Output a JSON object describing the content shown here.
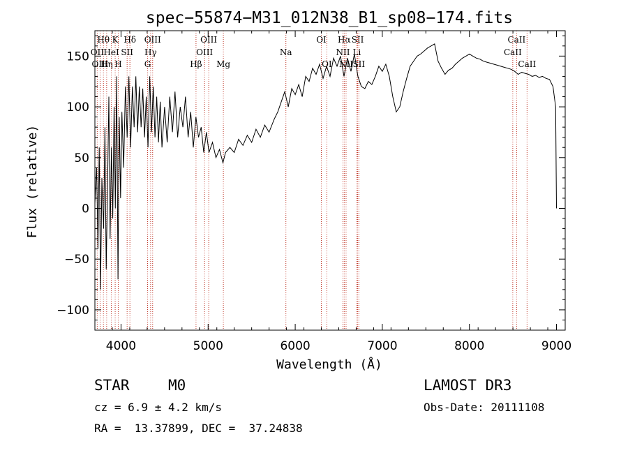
{
  "chart_data": {
    "type": "line",
    "title": "spec−55874−M31_012N38_B1_sp08−174.fits",
    "xlabel": "Wavelength (Å)",
    "ylabel": "Flux (relative)",
    "xlim": [
      3700,
      9100
    ],
    "ylim": [
      -120,
      175
    ],
    "x_ticks": [
      4000,
      5000,
      6000,
      7000,
      8000,
      9000
    ],
    "x_tick_labels": [
      "4000",
      "5000",
      "6000",
      "7000",
      "8000",
      "9000"
    ],
    "y_ticks": [
      -100,
      -50,
      0,
      50,
      100,
      150
    ],
    "y_tick_labels": [
      "−100",
      "−50",
      "0",
      "50",
      "100",
      "150"
    ],
    "series": [
      {
        "name": "flux",
        "color": "#000000",
        "points": [
          [
            3700,
            5
          ],
          [
            3720,
            40
          ],
          [
            3735,
            -40
          ],
          [
            3750,
            60
          ],
          [
            3765,
            -80
          ],
          [
            3780,
            30
          ],
          [
            3800,
            -20
          ],
          [
            3815,
            80
          ],
          [
            3830,
            -60
          ],
          [
            3845,
            20
          ],
          [
            3860,
            110
          ],
          [
            3875,
            -30
          ],
          [
            3890,
            60
          ],
          [
            3905,
            -10
          ],
          [
            3920,
            100
          ],
          [
            3935,
            0
          ],
          [
            3950,
            130
          ],
          [
            3965,
            -70
          ],
          [
            3980,
            90
          ],
          [
            3995,
            10
          ],
          [
            4010,
            95
          ],
          [
            4030,
            40
          ],
          [
            4050,
            120
          ],
          [
            4070,
            70
          ],
          [
            4090,
            130
          ],
          [
            4110,
            60
          ],
          [
            4130,
            120
          ],
          [
            4150,
            80
          ],
          [
            4170,
            130
          ],
          [
            4190,
            75
          ],
          [
            4210,
            120
          ],
          [
            4230,
            80
          ],
          [
            4250,
            118
          ],
          [
            4270,
            70
          ],
          [
            4290,
            110
          ],
          [
            4310,
            60
          ],
          [
            4330,
            130
          ],
          [
            4350,
            75
          ],
          [
            4370,
            120
          ],
          [
            4390,
            70
          ],
          [
            4410,
            110
          ],
          [
            4430,
            65
          ],
          [
            4450,
            105
          ],
          [
            4470,
            60
          ],
          [
            4500,
            100
          ],
          [
            4530,
            65
          ],
          [
            4560,
            110
          ],
          [
            4590,
            75
          ],
          [
            4620,
            115
          ],
          [
            4650,
            70
          ],
          [
            4680,
            100
          ],
          [
            4710,
            80
          ],
          [
            4740,
            110
          ],
          [
            4770,
            70
          ],
          [
            4800,
            95
          ],
          [
            4830,
            60
          ],
          [
            4860,
            90
          ],
          [
            4890,
            70
          ],
          [
            4920,
            80
          ],
          [
            4950,
            55
          ],
          [
            4980,
            75
          ],
          [
            5010,
            55
          ],
          [
            5050,
            65
          ],
          [
            5090,
            50
          ],
          [
            5130,
            58
          ],
          [
            5170,
            45
          ],
          [
            5200,
            55
          ],
          [
            5250,
            60
          ],
          [
            5300,
            55
          ],
          [
            5350,
            68
          ],
          [
            5400,
            62
          ],
          [
            5450,
            72
          ],
          [
            5500,
            65
          ],
          [
            5550,
            78
          ],
          [
            5600,
            70
          ],
          [
            5650,
            82
          ],
          [
            5700,
            75
          ],
          [
            5760,
            88
          ],
          [
            5800,
            95
          ],
          [
            5840,
            105
          ],
          [
            5880,
            115
          ],
          [
            5920,
            100
          ],
          [
            5960,
            118
          ],
          [
            6000,
            112
          ],
          [
            6040,
            122
          ],
          [
            6080,
            110
          ],
          [
            6120,
            130
          ],
          [
            6160,
            125
          ],
          [
            6200,
            138
          ],
          [
            6240,
            132
          ],
          [
            6280,
            142
          ],
          [
            6320,
            128
          ],
          [
            6360,
            140
          ],
          [
            6400,
            130
          ],
          [
            6440,
            148
          ],
          [
            6480,
            140
          ],
          [
            6520,
            150
          ],
          [
            6560,
            130
          ],
          [
            6600,
            148
          ],
          [
            6640,
            135
          ],
          [
            6680,
            152
          ],
          [
            6720,
            130
          ],
          [
            6760,
            120
          ],
          [
            6800,
            118
          ],
          [
            6840,
            125
          ],
          [
            6880,
            122
          ],
          [
            6920,
            130
          ],
          [
            6960,
            140
          ],
          [
            7000,
            135
          ],
          [
            7040,
            142
          ],
          [
            7080,
            130
          ],
          [
            7120,
            110
          ],
          [
            7160,
            95
          ],
          [
            7200,
            100
          ],
          [
            7240,
            115
          ],
          [
            7280,
            128
          ],
          [
            7320,
            140
          ],
          [
            7360,
            145
          ],
          [
            7400,
            150
          ],
          [
            7440,
            152
          ],
          [
            7480,
            155
          ],
          [
            7520,
            158
          ],
          [
            7560,
            160
          ],
          [
            7600,
            162
          ],
          [
            7640,
            145
          ],
          [
            7680,
            138
          ],
          [
            7720,
            132
          ],
          [
            7760,
            136
          ],
          [
            7800,
            138
          ],
          [
            7840,
            142
          ],
          [
            7880,
            145
          ],
          [
            7920,
            148
          ],
          [
            7960,
            150
          ],
          [
            8000,
            152
          ],
          [
            8040,
            150
          ],
          [
            8080,
            148
          ],
          [
            8120,
            147
          ],
          [
            8160,
            145
          ],
          [
            8200,
            144
          ],
          [
            8240,
            143
          ],
          [
            8280,
            142
          ],
          [
            8320,
            141
          ],
          [
            8360,
            140
          ],
          [
            8400,
            139
          ],
          [
            8440,
            138
          ],
          [
            8480,
            137
          ],
          [
            8520,
            135
          ],
          [
            8560,
            132
          ],
          [
            8600,
            134
          ],
          [
            8640,
            133
          ],
          [
            8680,
            132
          ],
          [
            8720,
            130
          ],
          [
            8760,
            131
          ],
          [
            8800,
            129
          ],
          [
            8840,
            130
          ],
          [
            8880,
            128
          ],
          [
            8920,
            127
          ],
          [
            8960,
            120
          ],
          [
            8990,
            100
          ],
          [
            9000,
            0
          ]
        ]
      }
    ],
    "line_markers": [
      {
        "label": "Hθ",
        "wave": 3798,
        "row": 0
      },
      {
        "label": "OII",
        "wave": 3727,
        "row": 1
      },
      {
        "label": "OIII",
        "wave": 3760,
        "row": 2
      },
      {
        "label": "Hη",
        "wave": 3835,
        "row": 2
      },
      {
        "label": "K",
        "wave": 3933,
        "row": 0
      },
      {
        "label": "HeI",
        "wave": 3889,
        "row": 1
      },
      {
        "label": "H",
        "wave": 3968,
        "row": 2
      },
      {
        "label": "Hδ",
        "wave": 4102,
        "row": 0
      },
      {
        "label": "SII",
        "wave": 4070,
        "row": 1
      },
      {
        "label": "OIII",
        "wave": 4363,
        "row": 0
      },
      {
        "label": "Hγ",
        "wave": 4340,
        "row": 1
      },
      {
        "label": "G",
        "wave": 4305,
        "row": 2
      },
      {
        "label": "Hβ",
        "wave": 4861,
        "row": 2
      },
      {
        "label": "OIII",
        "wave": 5007,
        "row": 0
      },
      {
        "label": "OIII",
        "wave": 4959,
        "row": 1
      },
      {
        "label": "Mg",
        "wave": 5175,
        "row": 2
      },
      {
        "label": "Na",
        "wave": 5893,
        "row": 1
      },
      {
        "label": "OI",
        "wave": 6300,
        "row": 0
      },
      {
        "label": "OI",
        "wave": 6363,
        "row": 2
      },
      {
        "label": "Hα",
        "wave": 6563,
        "row": 0
      },
      {
        "label": "NII",
        "wave": 6548,
        "row": 1
      },
      {
        "label": "NII",
        "wave": 6584,
        "row": 2
      },
      {
        "label": "SII",
        "wave": 6717,
        "row": 0
      },
      {
        "label": "Li",
        "wave": 6708,
        "row": 1
      },
      {
        "label": "SII",
        "wave": 6731,
        "row": 2
      },
      {
        "label": "CaII",
        "wave": 8542,
        "row": 0
      },
      {
        "label": "CaII",
        "wave": 8498,
        "row": 1
      },
      {
        "label": "CaII",
        "wave": 8662,
        "row": 2
      }
    ],
    "marker_color": "#c0392b",
    "line_color": "#000000"
  },
  "info": {
    "object_class": "STAR",
    "subclass": "M0",
    "survey": "LAMOST DR3",
    "cz": "cz = 6.9 ± 4.2 km/s",
    "obs_date": "Obs-Date: 20111108",
    "coords": "RA =  13.37899, DEC =  37.24838"
  }
}
